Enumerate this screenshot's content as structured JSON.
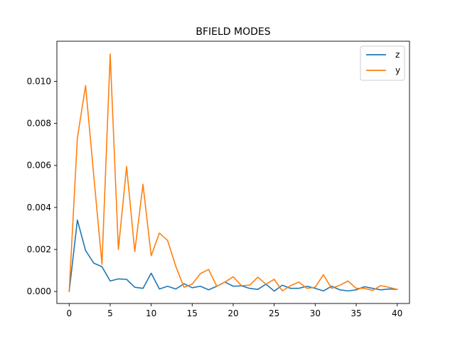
{
  "chart_data": {
    "type": "line",
    "title": "BFIELD MODES",
    "xlabel": "",
    "ylabel": "",
    "xlim": [
      -1.5,
      41.5
    ],
    "ylim": [
      -0.00057,
      0.01191
    ],
    "x_ticks": [
      0,
      5,
      10,
      15,
      20,
      25,
      30,
      35,
      40
    ],
    "y_ticks": [
      0.0,
      0.002,
      0.004,
      0.006,
      0.008,
      0.01
    ],
    "y_tick_labels": [
      "0.000",
      "0.002",
      "0.004",
      "0.006",
      "0.008",
      "0.010"
    ],
    "grid": false,
    "legend_position": "top-right",
    "x": [
      0,
      1,
      2,
      3,
      4,
      5,
      6,
      7,
      8,
      9,
      10,
      11,
      12,
      13,
      14,
      15,
      16,
      17,
      18,
      19,
      20,
      21,
      22,
      23,
      24,
      25,
      26,
      27,
      28,
      29,
      30,
      31,
      32,
      33,
      34,
      35,
      36,
      37,
      38,
      39,
      40
    ],
    "series": [
      {
        "name": "z",
        "color": "#1f77b4",
        "values": [
          0.0,
          0.0034,
          0.00195,
          0.00135,
          0.00118,
          0.0005,
          0.0006,
          0.00058,
          0.0002,
          0.00015,
          0.00087,
          0.00012,
          0.00025,
          0.00012,
          0.00037,
          0.00018,
          0.00025,
          8e-05,
          0.00025,
          0.00045,
          0.00025,
          0.00027,
          0.00015,
          0.0001,
          0.00035,
          2e-05,
          0.0003,
          0.00015,
          0.00015,
          0.00025,
          0.00015,
          3e-05,
          0.00025,
          8e-05,
          3e-05,
          8e-05,
          0.00023,
          0.00015,
          8e-05,
          0.00012,
          0.0001
        ]
      },
      {
        "name": "y",
        "color": "#ff7f0e",
        "values": [
          0.0,
          0.0073,
          0.0098,
          0.0055,
          0.0013,
          0.0113,
          0.002,
          0.00595,
          0.0019,
          0.0051,
          0.0017,
          0.00278,
          0.00243,
          0.0012,
          0.0002,
          0.00035,
          0.00085,
          0.00105,
          0.00025,
          0.00045,
          0.0007,
          0.00028,
          0.0003,
          0.00068,
          0.00035,
          0.00058,
          3e-05,
          0.00028,
          0.00045,
          0.00015,
          0.0002,
          0.0008,
          0.00015,
          0.0003,
          0.0005,
          0.00015,
          0.00015,
          5e-05,
          0.00028,
          0.0002,
          0.0001
        ]
      }
    ]
  }
}
